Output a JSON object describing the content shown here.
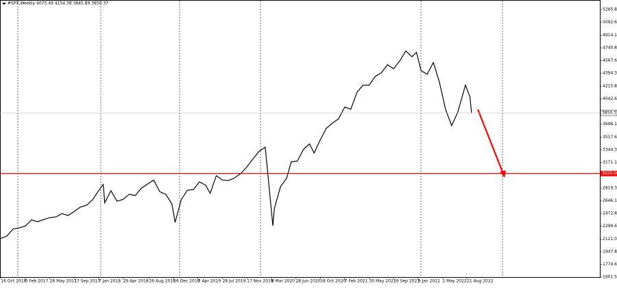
{
  "chart_data": {
    "type": "line",
    "title": "#SPX,Weekly  4075.49 4154.38 3845.89 3850.37",
    "color": "#000000",
    "x": [
      "2016-10-16",
      "2016-11-13",
      "2016-12-11",
      "2017-01-08",
      "2017-02-05",
      "2017-03-05",
      "2017-04-02",
      "2017-04-30",
      "2017-05-28",
      "2017-06-25",
      "2017-07-23",
      "2017-08-20",
      "2017-09-17",
      "2017-10-15",
      "2017-11-12",
      "2017-12-10",
      "2018-01-07",
      "2018-01-28",
      "2018-02-04",
      "2018-03-04",
      "2018-04-01",
      "2018-04-29",
      "2018-05-27",
      "2018-06-24",
      "2018-07-22",
      "2018-08-19",
      "2018-09-16",
      "2018-10-14",
      "2018-11-11",
      "2018-12-09",
      "2018-12-23",
      "2019-01-20",
      "2019-02-17",
      "2019-03-17",
      "2019-04-14",
      "2019-05-12",
      "2019-06-02",
      "2019-06-30",
      "2019-07-28",
      "2019-08-25",
      "2019-09-22",
      "2019-10-20",
      "2019-11-17",
      "2019-12-15",
      "2020-01-12",
      "2020-02-09",
      "2020-02-23",
      "2020-03-15",
      "2020-03-22",
      "2020-04-19",
      "2020-05-17",
      "2020-06-07",
      "2020-07-05",
      "2020-08-02",
      "2020-08-30",
      "2020-09-20",
      "2020-10-18",
      "2020-11-15",
      "2020-12-13",
      "2021-01-10",
      "2021-02-07",
      "2021-03-07",
      "2021-04-04",
      "2021-05-02",
      "2021-05-30",
      "2021-06-27",
      "2021-07-25",
      "2021-08-22",
      "2021-09-19",
      "2021-10-17",
      "2021-11-14",
      "2021-12-12",
      "2022-01-02",
      "2022-01-23",
      "2022-02-20",
      "2022-03-20",
      "2022-04-17",
      "2022-05-15",
      "2022-06-12",
      "2022-07-10",
      "2022-08-14",
      "2022-09-04",
      "2022-09-11"
    ],
    "values": [
      2130,
      2165,
      2260,
      2275,
      2300,
      2385,
      2360,
      2390,
      2415,
      2425,
      2470,
      2445,
      2500,
      2560,
      2585,
      2660,
      2785,
      2870,
      2620,
      2785,
      2640,
      2665,
      2735,
      2720,
      2820,
      2875,
      2930,
      2770,
      2735,
      2600,
      2350,
      2660,
      2790,
      2800,
      2905,
      2860,
      2750,
      2990,
      2930,
      2925,
      2960,
      3020,
      3110,
      3220,
      3325,
      3380,
      2955,
      2305,
      2540,
      2840,
      2955,
      3180,
      3190,
      3350,
      3425,
      3300,
      3480,
      3640,
      3710,
      3770,
      3930,
      3900,
      4130,
      4230,
      4230,
      4350,
      4400,
      4510,
      4455,
      4560,
      4700,
      4620,
      4680,
      4430,
      4380,
      4540,
      4270,
      3900,
      3675,
      3860,
      4230,
      4070,
      3850
    ],
    "xlim": [
      "2016-10-12",
      "2024-04-21"
    ],
    "xticks": [
      {
        "value": "2016-10-16",
        "label": "16 Oct 2016"
      },
      {
        "value": "2017-02-05",
        "label": "5 Feb 2017"
      },
      {
        "value": "2017-05-28",
        "label": "28 May 2017"
      },
      {
        "value": "2017-09-17",
        "label": "17 Sep 2017"
      },
      {
        "value": "2018-01-07",
        "label": "7 Jan 2018"
      },
      {
        "value": "2018-04-29",
        "label": "29 Apr 2018"
      },
      {
        "value": "2018-08-26",
        "label": "26 Aug 2018"
      },
      {
        "value": "2018-12-16",
        "label": "16 Dec 2018"
      },
      {
        "value": "2019-04-07",
        "label": "7 Apr 2019"
      },
      {
        "value": "2019-07-28",
        "label": "28 Jul 2019"
      },
      {
        "value": "2019-11-17",
        "label": "17 Nov 2019"
      },
      {
        "value": "2020-03-08",
        "label": "8 Mar 2020"
      },
      {
        "value": "2020-06-28",
        "label": "28 Jun 2020"
      },
      {
        "value": "2020-10-18",
        "label": "18 Oct 2020"
      },
      {
        "value": "2021-02-07",
        "label": "7 Feb 2021"
      },
      {
        "value": "2021-05-30",
        "label": "30 May 2021"
      },
      {
        "value": "2021-09-19",
        "label": "19 Sep 2021"
      },
      {
        "value": "2022-01-09",
        "label": "9 Jan 2022"
      },
      {
        "value": "2022-05-01",
        "label": "1 May 2022"
      },
      {
        "value": "2022-08-21",
        "label": "21 Aug 2022"
      }
    ],
    "ylim": [
      1601.55,
      5397
    ],
    "yticks": [
      {
        "value": 5265.85,
        "label": "5265.85"
      },
      {
        "value": 5092.6,
        "label": "5092.60"
      },
      {
        "value": 4914.15,
        "label": "4914.15"
      },
      {
        "value": 4740.85,
        "label": "4740.85"
      },
      {
        "value": 4567.6,
        "label": "4567.60"
      },
      {
        "value": 4394.35,
        "label": "4394.35"
      },
      {
        "value": 4215.85,
        "label": "4215.85"
      },
      {
        "value": 4042.6,
        "label": "4042.60"
      },
      {
        "value": 3696.1,
        "label": "3696.10"
      },
      {
        "value": 3517.6,
        "label": "3517.60"
      },
      {
        "value": 3344.35,
        "label": "3344.35"
      },
      {
        "value": 3171.1,
        "label": "3171.10"
      },
      {
        "value": 2819.35,
        "label": "2819.35"
      },
      {
        "value": 2646.1,
        "label": "2646.10"
      },
      {
        "value": 2472.85,
        "label": "2472.85"
      },
      {
        "value": 2299.6,
        "label": "2299.60"
      },
      {
        "value": 2121.05,
        "label": "2121.05"
      },
      {
        "value": 1947.8,
        "label": "1947.80"
      },
      {
        "value": 1774.6,
        "label": "1774.60"
      },
      {
        "value": 1601.55,
        "label": "1601.55"
      }
    ],
    "last_price": 3850.37,
    "hline": {
      "value": 3020,
      "label": "3020.00",
      "color": "#ff0000"
    }
  }
}
